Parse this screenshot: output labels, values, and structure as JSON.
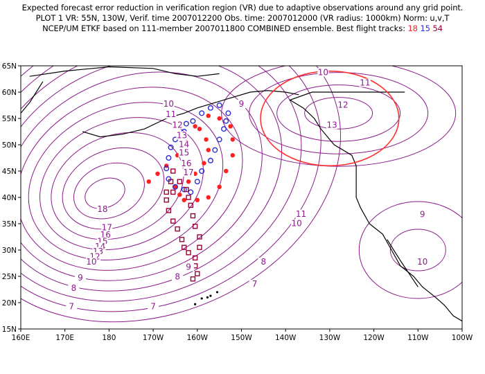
{
  "header": {
    "line1": "Expected forecast error reduction in verification region (VR) due to adaptive observations around any grid point.",
    "line2": "PLOT 1 VR: 55N, 130W, Verif. time 2007012200 Obs. time: 2007012000 (VR radius: 1000km) Norm: u,v,T",
    "line3_prefix": "NCEP/UM ETKF based on 111-member 2007011800 COMBINED ensemble.  Best flight tracks:",
    "tracks": [
      "18",
      "15",
      "54"
    ]
  },
  "colors": {
    "contour": "#8b1a8b",
    "verification_circle": "#ff3030",
    "track_18": "#ff2020",
    "track_15": "#2b2bd9",
    "track_54": "#990033",
    "coast": "#000000"
  },
  "axes": {
    "x_ticks": [
      "160E",
      "170E",
      "180",
      "170W",
      "160W",
      "150W",
      "140W",
      "130W",
      "120W",
      "110W",
      "100W"
    ],
    "y_ticks": [
      "65N",
      "60N",
      "55N",
      "50N",
      "45N",
      "40N",
      "35N",
      "30N",
      "25N",
      "20N",
      "15N"
    ]
  },
  "map": {
    "lon_range": [
      160,
      260
    ],
    "lat_range": [
      15,
      65
    ],
    "contour_levels": [
      7,
      8,
      9,
      10,
      11,
      12,
      13,
      14,
      15,
      16,
      17,
      18
    ],
    "contour_labels": [
      {
        "text": "18",
        "lon": 178.5,
        "lat": 37.5
      },
      {
        "text": "17",
        "lon": 179.5,
        "lat": 34
      },
      {
        "text": "16",
        "lon": 179.2,
        "lat": 32.6
      },
      {
        "text": "15",
        "lon": 178.5,
        "lat": 31.4
      },
      {
        "text": "14",
        "lon": 178,
        "lat": 30.4
      },
      {
        "text": "13",
        "lon": 177.5,
        "lat": 29.5
      },
      {
        "text": "12",
        "lon": 176.8,
        "lat": 28.5
      },
      {
        "text": "10",
        "lon": 176,
        "lat": 27.5
      },
      {
        "text": "9",
        "lon": 173.5,
        "lat": 24.5
      },
      {
        "text": "8",
        "lon": 172,
        "lat": 22.5
      },
      {
        "text": "7",
        "lon": 171.5,
        "lat": 19
      },
      {
        "text": "7",
        "lon": 190,
        "lat": 19
      },
      {
        "text": "8",
        "lon": 195.5,
        "lat": 24.7
      },
      {
        "text": "9",
        "lon": 198,
        "lat": 26.5
      },
      {
        "text": "8",
        "lon": 215,
        "lat": 27.5
      },
      {
        "text": "7",
        "lon": 213,
        "lat": 23.3
      },
      {
        "text": "11",
        "lon": 223.5,
        "lat": 36.6
      },
      {
        "text": "10",
        "lon": 222.5,
        "lat": 34.8
      },
      {
        "text": "9",
        "lon": 251,
        "lat": 36.5
      },
      {
        "text": "10",
        "lon": 251,
        "lat": 27.5
      },
      {
        "text": "10",
        "lon": 193.5,
        "lat": 57.5
      },
      {
        "text": "11",
        "lon": 194,
        "lat": 55.5
      },
      {
        "text": "12",
        "lon": 195.5,
        "lat": 53.5
      },
      {
        "text": "13",
        "lon": 196.5,
        "lat": 51.5
      },
      {
        "text": "14",
        "lon": 197,
        "lat": 49.8
      },
      {
        "text": "15",
        "lon": 197,
        "lat": 48.2
      },
      {
        "text": "16",
        "lon": 197.5,
        "lat": 46.2
      },
      {
        "text": "17",
        "lon": 198,
        "lat": 44.5
      },
      {
        "text": "9",
        "lon": 210,
        "lat": 57.5
      },
      {
        "text": "10",
        "lon": 228.5,
        "lat": 63.5
      },
      {
        "text": "11",
        "lon": 238,
        "lat": 61.5
      },
      {
        "text": "12",
        "lon": 233,
        "lat": 57.3
      },
      {
        "text": "13",
        "lon": 230.5,
        "lat": 53.5
      }
    ],
    "verification_region": {
      "center_lon": 230,
      "center_lat": 55,
      "radius_km": 1000
    },
    "track_18_points": [
      [
        205,
        55
      ],
      [
        207.5,
        53.5
      ],
      [
        208,
        51
      ],
      [
        208,
        48
      ],
      [
        206.5,
        45
      ],
      [
        205,
        42
      ],
      [
        202.5,
        40
      ],
      [
        200,
        39.5
      ],
      [
        197,
        39.5
      ],
      [
        196,
        40.5
      ],
      [
        195,
        42
      ],
      [
        198,
        43
      ],
      [
        199.5,
        44.5
      ],
      [
        201.5,
        46.5
      ],
      [
        202.5,
        49
      ],
      [
        202,
        51
      ],
      [
        200.5,
        53
      ],
      [
        202.5,
        55.5
      ],
      [
        199.5,
        53.5
      ],
      [
        197.5,
        50.5
      ],
      [
        195.5,
        48
      ],
      [
        193,
        46
      ],
      [
        191,
        44.5
      ],
      [
        189,
        43
      ]
    ],
    "track_15_points": [
      [
        207,
        56
      ],
      [
        206.5,
        54.5
      ],
      [
        206,
        53
      ],
      [
        205,
        51
      ],
      [
        204,
        49
      ],
      [
        203,
        47
      ],
      [
        201,
        45
      ],
      [
        200,
        43
      ],
      [
        198.5,
        41
      ],
      [
        197,
        41.5
      ],
      [
        195,
        42
      ],
      [
        193.5,
        43.5
      ],
      [
        193,
        45.5
      ],
      [
        193.5,
        47.5
      ],
      [
        194,
        49.5
      ],
      [
        195,
        51
      ],
      [
        197,
        52.5
      ],
      [
        199,
        54.5
      ],
      [
        201,
        56
      ],
      [
        203,
        57
      ],
      [
        205,
        57.5
      ],
      [
        197.5,
        54
      ]
    ],
    "track_54_points": [
      [
        194.5,
        45
      ],
      [
        194,
        43
      ],
      [
        193,
        41
      ],
      [
        193,
        39.5
      ],
      [
        193.5,
        37.5
      ],
      [
        194.5,
        35.5
      ],
      [
        195.5,
        34
      ],
      [
        196.5,
        32
      ],
      [
        197,
        30.5
      ],
      [
        198,
        29.5
      ],
      [
        199.5,
        28.5
      ],
      [
        199.5,
        27
      ],
      [
        200,
        25.5
      ],
      [
        199,
        24.5
      ],
      [
        200.5,
        30.5
      ],
      [
        200.5,
        32.5
      ],
      [
        199.5,
        34.5
      ],
      [
        199,
        36.5
      ],
      [
        198.5,
        38.5
      ],
      [
        198,
        40
      ],
      [
        197.5,
        41.5
      ],
      [
        196,
        43
      ],
      [
        194.5,
        41
      ]
    ]
  }
}
